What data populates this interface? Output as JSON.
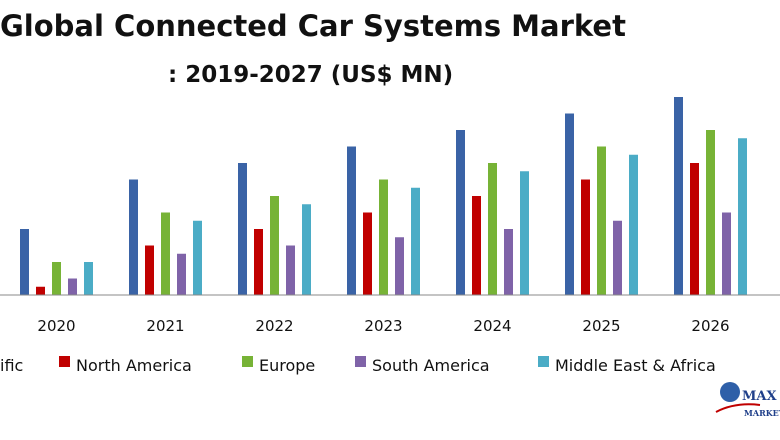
{
  "chart_data": {
    "type": "bar",
    "title_line1": "Global Connected Car Systems Market",
    "title_line2": ": 2019-2027 (US$ MN)",
    "categories": [
      "2020",
      "2021",
      "2022",
      "2023",
      "2024",
      "2025",
      "2026"
    ],
    "series": [
      {
        "name": "Asia Pacific",
        "color": "#3a63a6",
        "values": [
          40,
          70,
          80,
          90,
          100,
          110,
          120
        ]
      },
      {
        "name": "North America",
        "color": "#c00000",
        "values": [
          5,
          30,
          40,
          50,
          60,
          70,
          80
        ]
      },
      {
        "name": "Europe",
        "color": "#77b336",
        "values": [
          20,
          50,
          60,
          70,
          80,
          90,
          100
        ]
      },
      {
        "name": "South America",
        "color": "#7f63a8",
        "values": [
          10,
          25,
          30,
          35,
          40,
          45,
          50
        ]
      },
      {
        "name": "Middle East & Africa",
        "color": "#4bacc6",
        "values": [
          20,
          45,
          55,
          65,
          75,
          85,
          95
        ]
      }
    ],
    "legend_labels": [
      "ific",
      "North America",
      "Europe",
      "South America",
      "Middle East & Africa"
    ],
    "legend_position": "bottom",
    "grid": false
  },
  "logo": {
    "text_line1": "MAX",
    "text_line2": "MARKET"
  }
}
